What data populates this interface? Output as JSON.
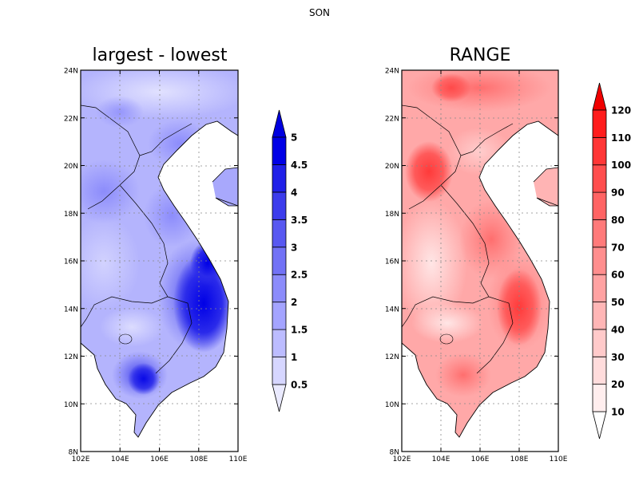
{
  "figure": {
    "title": "SON"
  },
  "panels": [
    {
      "id": "left",
      "title": "largest - lowest",
      "colormap": "blue",
      "lat_ticks": [
        "24N",
        "22N",
        "20N",
        "18N",
        "16N",
        "14N",
        "12N",
        "10N",
        "8N"
      ],
      "lon_ticks": [
        "102E",
        "104E",
        "106E",
        "108E",
        "110E"
      ],
      "lat_range": [
        8,
        24
      ],
      "lon_range": [
        102,
        110
      ],
      "colorbar": {
        "labels": [
          "0.5",
          "1",
          "1.5",
          "2",
          "2.5",
          "3",
          "3.5",
          "4",
          "4.5",
          "5"
        ],
        "colors": [
          "#eaeaff",
          "#d6d6ff",
          "#bcbcff",
          "#a4a4ff",
          "#8c8cfb",
          "#7272f6",
          "#5858f1",
          "#3c3cec",
          "#2020e8",
          "#0000e6",
          "#0000e0"
        ]
      }
    },
    {
      "id": "right",
      "title": "RANGE",
      "colormap": "red",
      "lat_ticks": [
        "24N",
        "22N",
        "20N",
        "18N",
        "16N",
        "14N",
        "12N",
        "10N",
        "8N"
      ],
      "lon_ticks": [
        "102E",
        "104E",
        "106E",
        "108E",
        "110E"
      ],
      "lat_range": [
        8,
        24
      ],
      "lon_range": [
        102,
        110
      ],
      "colorbar": {
        "labels": [
          "10",
          "20",
          "30",
          "40",
          "50",
          "60",
          "70",
          "80",
          "90",
          "100",
          "110",
          "120"
        ],
        "colors": [
          "#ffffff",
          "#ffeeee",
          "#ffdcdc",
          "#ffcaca",
          "#ffb6b6",
          "#ffa2a2",
          "#ff8e8e",
          "#ff7a7a",
          "#ff6464",
          "#ff4e4e",
          "#ff3636",
          "#ff1c1c",
          "#f00000"
        ]
      }
    }
  ]
}
